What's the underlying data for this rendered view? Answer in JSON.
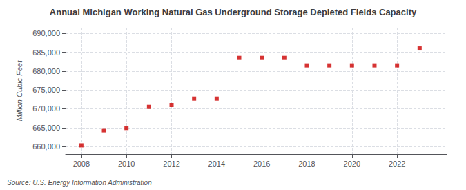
{
  "chart_data": {
    "type": "scatter",
    "title": "Annual Michigan Working Natural Gas Underground Storage Depleted Fields Capacity",
    "ylabel": "Million Cubic Feet",
    "source": "Source: U.S. Energy Information Administration",
    "x": [
      2008,
      2009,
      2010,
      2011,
      2012,
      2013,
      2014,
      2015,
      2016,
      2017,
      2018,
      2019,
      2020,
      2021,
      2022,
      2023
    ],
    "values": [
      660300,
      664300,
      664900,
      670500,
      671000,
      672700,
      672700,
      683500,
      683500,
      683500,
      681500,
      681500,
      681500,
      681500,
      681500,
      686000
    ],
    "color": "#cc0000",
    "marker": "square",
    "xlim": [
      2007.3,
      2024.2
    ],
    "xticks": [
      2008,
      2010,
      2012,
      2014,
      2016,
      2018,
      2020,
      2022
    ],
    "ylim": [
      658000,
      691500
    ],
    "yticks": [
      {
        "value": 660000,
        "label": "660,000"
      },
      {
        "value": 665000,
        "label": "665,000"
      },
      {
        "value": 670000,
        "label": "670,000"
      },
      {
        "value": 675000,
        "label": "675,000"
      },
      {
        "value": 680000,
        "label": "680,000"
      },
      {
        "value": 685000,
        "label": "685,000"
      },
      {
        "value": 690000,
        "label": "690,000"
      }
    ],
    "grid": true
  }
}
